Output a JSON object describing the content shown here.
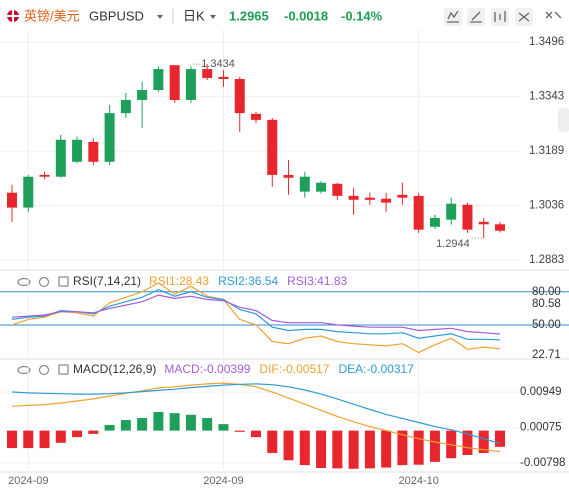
{
  "header": {
    "name": "英镑/美元",
    "symbol": "GBPUSD",
    "period": "日K",
    "price": 1.2965,
    "change": -0.0018,
    "change_pct": {
      "value": -0.14,
      "label": "-0.14%"
    },
    "color": "#1f9d55"
  },
  "chart_data": [
    {
      "type": "candlestick",
      "categories": [
        null,
        "2024-09",
        null,
        null,
        null,
        null,
        null,
        null,
        null,
        null,
        null,
        null,
        null,
        "2024-09",
        null,
        null,
        null,
        null,
        null,
        null,
        null,
        null,
        null,
        null,
        null,
        "2024-10",
        null,
        null,
        null,
        null,
        null
      ],
      "open": [
        1.3072,
        1.303,
        1.3122,
        1.3117,
        1.3159,
        1.3215,
        1.3159,
        1.3296,
        1.3333,
        1.3361,
        1.3431,
        1.3333,
        1.342,
        1.3398,
        1.3392,
        1.3294,
        1.3277,
        1.3122,
        1.3075,
        1.3075,
        1.3097,
        1.3063,
        1.3058,
        1.3055,
        1.3066,
        1.3063,
        1.2976,
        1.2996,
        1.3038,
        1.299,
        1.2983
      ],
      "high": [
        1.3094,
        1.3122,
        1.3131,
        1.3235,
        1.323,
        1.3225,
        1.3319,
        1.3353,
        1.3384,
        1.3428,
        1.343,
        1.3428,
        1.3434,
        1.3417,
        1.3398,
        1.3299,
        1.3282,
        1.3164,
        1.3131,
        1.3105,
        1.31,
        1.3086,
        1.3072,
        1.3072,
        1.31,
        1.3072,
        1.301,
        1.3058,
        1.3044,
        1.3001,
        1.299
      ],
      "low": [
        1.299,
        1.3018,
        1.311,
        1.3114,
        1.3155,
        1.315,
        1.315,
        1.3282,
        1.3254,
        1.3356,
        1.3325,
        1.3325,
        1.3389,
        1.337,
        1.3243,
        1.3268,
        1.3089,
        1.3066,
        1.3058,
        1.307,
        1.3052,
        1.301,
        1.3038,
        1.3018,
        1.3038,
        1.2959,
        1.297,
        1.2982,
        1.2959,
        1.2944,
        1.296
      ],
      "close": [
        1.303,
        1.3117,
        1.3117,
        1.3221,
        1.3221,
        1.3159,
        1.3296,
        1.3333,
        1.3361,
        1.342,
        1.3333,
        1.342,
        1.3395,
        1.3392,
        1.3296,
        1.3277,
        1.3122,
        1.3114,
        1.3117,
        1.31,
        1.3063,
        1.3052,
        1.3052,
        1.3044,
        1.3058,
        1.2968,
        1.3001,
        1.3041,
        1.2968,
        1.2983,
        1.2965
      ],
      "up_color": "#1fa05a",
      "down_color": "#e8262d",
      "ylim": [
        1.286,
        1.353
      ],
      "yticks": [
        1.3496,
        1.3343,
        1.3189,
        1.3036,
        1.2883
      ],
      "grid": true,
      "max_label": 1.3434,
      "min_label": 1.2944
    },
    {
      "type": "line",
      "title": "RSI(7,14,21)",
      "series": [
        {
          "name": "RSI1:",
          "color": "#f0a233",
          "values": [
            50,
            55,
            57,
            62,
            61,
            58,
            70,
            75,
            80,
            88,
            78,
            85,
            76,
            73,
            55,
            50,
            35,
            33,
            38,
            40,
            35,
            33,
            32,
            31,
            33,
            25,
            32,
            38,
            28,
            30,
            28.43
          ]
        },
        {
          "name": "RSI2:",
          "color": "#2f9bd6",
          "values": [
            55,
            57,
            58,
            63,
            62,
            60,
            67,
            71,
            75,
            82,
            76,
            80,
            75,
            73,
            64,
            60,
            48,
            45,
            46,
            46,
            44,
            43,
            42,
            42,
            43,
            38,
            40,
            42,
            37,
            37,
            36.54
          ]
        },
        {
          "name": "RSI3:",
          "color": "#a55fd6",
          "values": [
            57,
            58,
            59,
            62,
            62,
            61,
            65,
            68,
            71,
            77,
            74,
            76,
            73,
            72,
            66,
            63,
            54,
            52,
            52,
            52,
            50,
            49,
            48,
            48,
            48,
            45,
            46,
            47,
            44,
            43,
            41.83
          ]
        }
      ],
      "ylim": [
        21,
        97
      ],
      "yticks": [
        {
          "value": 80,
          "label": "80.00"
        },
        {
          "value": 50,
          "label": "50.00"
        }
      ],
      "value_tags": [
        {
          "value": 80.58,
          "label": "80.58"
        },
        {
          "value": 22.71,
          "label": "22.71"
        }
      ],
      "reference_color": "#2d8fcf"
    },
    {
      "type": "macd",
      "title": "MACD(12,26,9)",
      "histogram": {
        "name": "MACD:",
        "color": "#a55fd6",
        "values": [
          -0.0043,
          -0.0043,
          -0.0043,
          -0.003,
          -0.0016,
          -0.0008,
          0.0014,
          0.0026,
          0.0031,
          0.0046,
          0.0043,
          0.0039,
          0.0031,
          0.0016,
          -0.0003,
          -0.0016,
          -0.0055,
          -0.0073,
          -0.0085,
          -0.0092,
          -0.0093,
          -0.0094,
          -0.0093,
          -0.0091,
          -0.0085,
          -0.0084,
          -0.0077,
          -0.0068,
          -0.006,
          -0.0055,
          -0.00399
        ]
      },
      "series": [
        {
          "name": "DIF:",
          "color": "#f0a233",
          "values": [
            0.006,
            0.0062,
            0.0064,
            0.0068,
            0.0073,
            0.0078,
            0.0085,
            0.0092,
            0.0098,
            0.0105,
            0.0108,
            0.0112,
            0.0115,
            0.0117,
            0.0114,
            0.0108,
            0.0095,
            0.008,
            0.0065,
            0.005,
            0.0035,
            0.0022,
            0.001,
            0.0,
            -0.001,
            -0.002,
            -0.0028,
            -0.0035,
            -0.0042,
            -0.0047,
            -0.00517
          ]
        },
        {
          "name": "DEA:",
          "color": "#2f9bd6",
          "values": [
            0.0095,
            0.0093,
            0.0092,
            0.0091,
            0.009,
            0.009,
            0.0091,
            0.0093,
            0.0096,
            0.0099,
            0.0102,
            0.0106,
            0.0109,
            0.0112,
            0.0114,
            0.0115,
            0.0113,
            0.0108,
            0.01,
            0.009,
            0.0078,
            0.0065,
            0.0052,
            0.004,
            0.003,
            0.002,
            0.001,
            0.0002,
            -0.0008,
            -0.002,
            -0.00317
          ]
        }
      ],
      "up_color": "#1fa05a",
      "down_color": "#e8262d",
      "ylim": [
        -0.0097,
        0.0169
      ],
      "yticks": [
        0.00949,
        0.00075,
        -0.00798
      ]
    }
  ]
}
